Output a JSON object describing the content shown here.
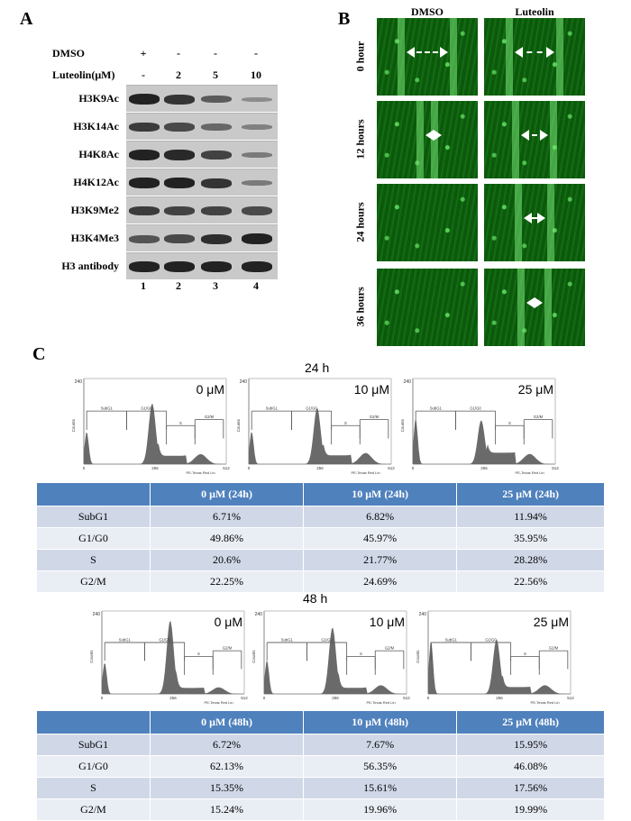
{
  "panels": {
    "a": "A",
    "b": "B",
    "c": "C"
  },
  "panelA": {
    "header_rows": [
      {
        "label": "DMSO",
        "values": [
          "+",
          "-",
          "-",
          "-"
        ]
      },
      {
        "label": "Luteolin(μM)",
        "values": [
          "-",
          "2",
          "5",
          "10"
        ]
      }
    ],
    "blots": [
      {
        "label": "H3K9Ac",
        "intensity": [
          1,
          0.85,
          0.55,
          0.15
        ]
      },
      {
        "label": "H3K14Ac",
        "intensity": [
          0.8,
          0.7,
          0.45,
          0.25
        ]
      },
      {
        "label": "H4K8Ac",
        "intensity": [
          1,
          0.95,
          0.75,
          0.3
        ]
      },
      {
        "label": "H4K12Ac",
        "intensity": [
          1,
          1,
          0.85,
          0.3
        ]
      },
      {
        "label": "H3K9Me2",
        "intensity": [
          0.8,
          0.75,
          0.75,
          0.7
        ]
      },
      {
        "label": "H3K4Me3",
        "intensity": [
          0.6,
          0.7,
          0.9,
          1
        ]
      },
      {
        "label": "H3 antibody",
        "intensity": [
          1,
          1,
          1,
          1
        ]
      }
    ],
    "lanes": [
      "1",
      "2",
      "3",
      "4"
    ]
  },
  "panelB": {
    "columns": [
      "DMSO",
      "Luteolin"
    ],
    "rows": [
      "0 hour",
      "12 hours",
      "24 hours",
      "36 hours"
    ],
    "gap_fraction": [
      [
        0.45,
        0.42
      ],
      [
        0.08,
        0.3
      ],
      [
        0,
        0.25
      ],
      [
        0,
        0.2
      ]
    ]
  },
  "panelC": {
    "hist_common": {
      "ymax": "240",
      "ylabel": "Counts",
      "xlabel": "PE-Texas Red Lin",
      "xticks": [
        "0",
        "256",
        "512"
      ],
      "gates": [
        "SubG1",
        "G1/G0",
        "S",
        "G2/M"
      ]
    },
    "set1": {
      "time": "24 h",
      "concs": [
        "0 μM",
        "10 μM",
        "25 μM"
      ],
      "table": {
        "headers": [
          "",
          "0 μM (24h)",
          "10 μM (24h)",
          "25 μM (24h)"
        ],
        "rows": [
          [
            "SubG1",
            "6.71%",
            "6.82%",
            "11.94%"
          ],
          [
            "G1/G0",
            "49.86%",
            "45.97%",
            "35.95%"
          ],
          [
            "S",
            "20.6%",
            "21.77%",
            "28.28%"
          ],
          [
            "G2/M",
            "22.25%",
            "24.69%",
            "22.56%"
          ]
        ]
      }
    },
    "set2": {
      "time": "48 h",
      "concs": [
        "0 μM",
        "10 μM",
        "25 μM"
      ],
      "table": {
        "headers": [
          "",
          "0 μM (48h)",
          "10 μM (48h)",
          "25 μM (48h)"
        ],
        "rows": [
          [
            "SubG1",
            "6.72%",
            "7.67%",
            "15.95%"
          ],
          [
            "G1/G0",
            "62.13%",
            "56.35%",
            "46.08%"
          ],
          [
            "S",
            "15.35%",
            "15.61%",
            "17.56%"
          ],
          [
            "G2/M",
            "15.24%",
            "19.96%",
            "19.99%"
          ]
        ]
      }
    }
  }
}
